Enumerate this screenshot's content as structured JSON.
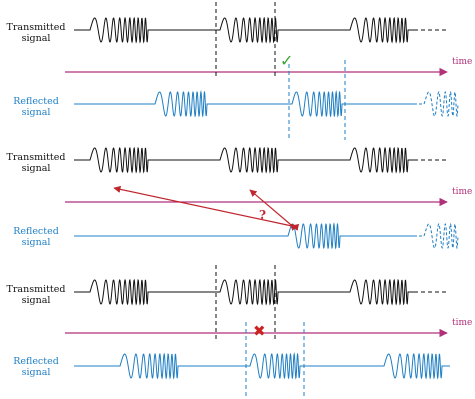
{
  "labels": {
    "transmitted": [
      "Transmitted",
      "signal"
    ],
    "reflected": [
      "Reflected",
      "signal"
    ],
    "time": "time"
  },
  "annotations": {
    "correct_mark": "✓",
    "ambiguity_mark": "?",
    "wrong_mark": "✖"
  },
  "colors": {
    "transmitted": "#111111",
    "reflected": "#1f7fc4",
    "time_axis": "#b0307a",
    "ambiguity_arrows": "#c0262d",
    "correct_mark": "#3aa534",
    "wrong_mark": "#cc2222"
  }
}
